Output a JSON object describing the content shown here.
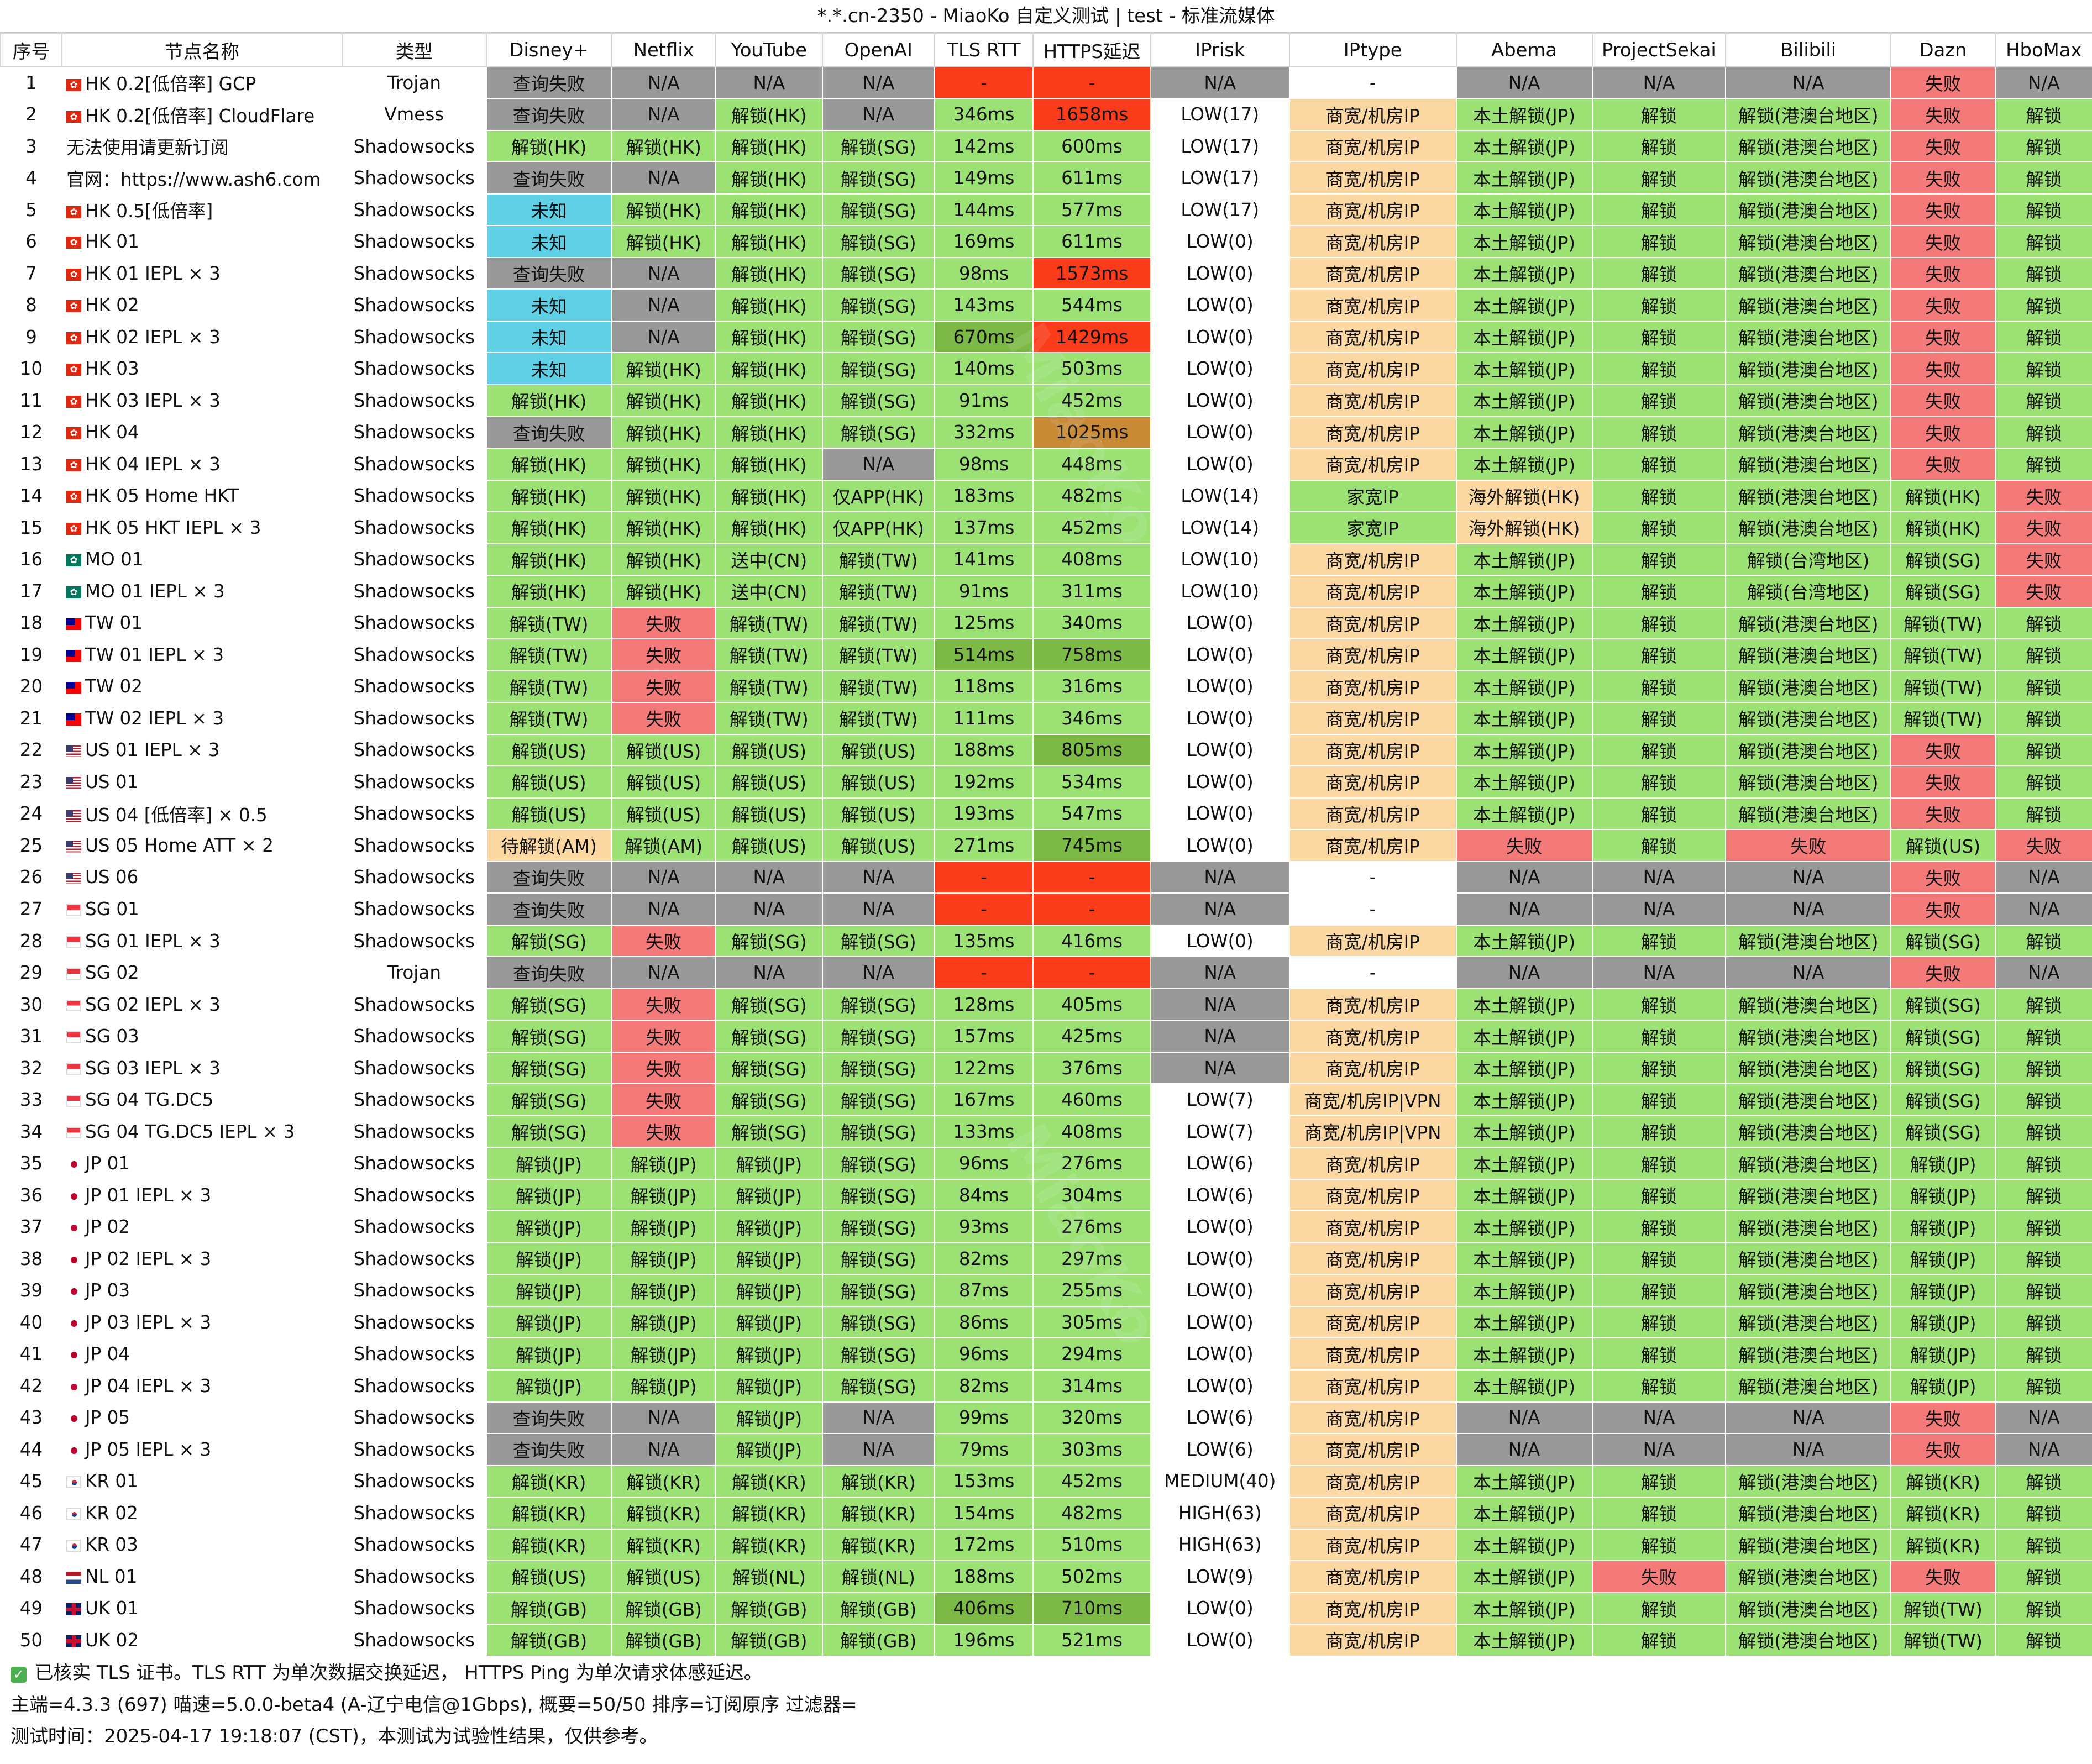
{
  "title": "*.*.cn-2350 - MiaoKo 自定义测试 | test - 标准流媒体",
  "headers": [
    "序号",
    "节点名称",
    "类型",
    "Disney+",
    "Netflix",
    "YouTube",
    "OpenAI",
    "TLS RTT",
    "HTTPS延迟",
    "IPrisk",
    "IPtype",
    "Abema",
    "ProjectSekai",
    "Bilibili",
    "Dazn",
    "HboMax"
  ],
  "rows": [
    [
      "1",
      "HK 0.2[低倍率] GCP",
      "Trojan",
      "查询失败",
      "N/A",
      "N/A",
      "N/A",
      "-",
      "-",
      "N/A",
      "-",
      "N/A",
      "N/A",
      "N/A",
      "失败",
      "N/A"
    ],
    [
      "2",
      "HK 0.2[低倍率] CloudFlare",
      "Vmess",
      "查询失败",
      "N/A",
      "解锁(HK)",
      "N/A",
      "346ms",
      "1658ms",
      "LOW(17)",
      "商宽/机房IP",
      "本土解锁(JP)",
      "解锁",
      "解锁(港澳台地区)",
      "失败",
      "解锁"
    ],
    [
      "3",
      "无法使用请更新订阅",
      "Shadowsocks",
      "解锁(HK)",
      "解锁(HK)",
      "解锁(HK)",
      "解锁(SG)",
      "142ms",
      "600ms",
      "LOW(17)",
      "商宽/机房IP",
      "本土解锁(JP)",
      "解锁",
      "解锁(港澳台地区)",
      "失败",
      "解锁"
    ],
    [
      "4",
      "官网：https://www.ash6.com",
      "Shadowsocks",
      "查询失败",
      "N/A",
      "解锁(HK)",
      "解锁(SG)",
      "149ms",
      "611ms",
      "LOW(17)",
      "商宽/机房IP",
      "本土解锁(JP)",
      "解锁",
      "解锁(港澳台地区)",
      "失败",
      "解锁"
    ],
    [
      "5",
      "HK 0.5[低倍率]",
      "Shadowsocks",
      "未知",
      "解锁(HK)",
      "解锁(HK)",
      "解锁(SG)",
      "144ms",
      "577ms",
      "LOW(17)",
      "商宽/机房IP",
      "本土解锁(JP)",
      "解锁",
      "解锁(港澳台地区)",
      "失败",
      "解锁"
    ],
    [
      "6",
      "HK 01",
      "Shadowsocks",
      "未知",
      "解锁(HK)",
      "解锁(HK)",
      "解锁(SG)",
      "169ms",
      "611ms",
      "LOW(0)",
      "商宽/机房IP",
      "本土解锁(JP)",
      "解锁",
      "解锁(港澳台地区)",
      "失败",
      "解锁"
    ],
    [
      "7",
      "HK 01 IEPL × 3",
      "Shadowsocks",
      "查询失败",
      "N/A",
      "解锁(HK)",
      "解锁(SG)",
      "98ms",
      "1573ms",
      "LOW(0)",
      "商宽/机房IP",
      "本土解锁(JP)",
      "解锁",
      "解锁(港澳台地区)",
      "失败",
      "解锁"
    ],
    [
      "8",
      "HK 02",
      "Shadowsocks",
      "未知",
      "N/A",
      "解锁(HK)",
      "解锁(SG)",
      "143ms",
      "544ms",
      "LOW(0)",
      "商宽/机房IP",
      "本土解锁(JP)",
      "解锁",
      "解锁(港澳台地区)",
      "失败",
      "解锁"
    ],
    [
      "9",
      "HK 02 IEPL × 3",
      "Shadowsocks",
      "未知",
      "N/A",
      "解锁(HK)",
      "解锁(SG)",
      "670ms",
      "1429ms",
      "LOW(0)",
      "商宽/机房IP",
      "本土解锁(JP)",
      "解锁",
      "解锁(港澳台地区)",
      "失败",
      "解锁"
    ],
    [
      "10",
      "HK 03",
      "Shadowsocks",
      "未知",
      "解锁(HK)",
      "解锁(HK)",
      "解锁(SG)",
      "140ms",
      "503ms",
      "LOW(0)",
      "商宽/机房IP",
      "本土解锁(JP)",
      "解锁",
      "解锁(港澳台地区)",
      "失败",
      "解锁"
    ],
    [
      "11",
      "HK 03 IEPL × 3",
      "Shadowsocks",
      "解锁(HK)",
      "解锁(HK)",
      "解锁(HK)",
      "解锁(SG)",
      "91ms",
      "452ms",
      "LOW(0)",
      "商宽/机房IP",
      "本土解锁(JP)",
      "解锁",
      "解锁(港澳台地区)",
      "失败",
      "解锁"
    ],
    [
      "12",
      "HK 04",
      "Shadowsocks",
      "查询失败",
      "解锁(HK)",
      "解锁(HK)",
      "解锁(SG)",
      "332ms",
      "1025ms",
      "LOW(0)",
      "商宽/机房IP",
      "本土解锁(JP)",
      "解锁",
      "解锁(港澳台地区)",
      "失败",
      "解锁"
    ],
    [
      "13",
      "HK 04 IEPL × 3",
      "Shadowsocks",
      "解锁(HK)",
      "解锁(HK)",
      "解锁(HK)",
      "N/A",
      "98ms",
      "448ms",
      "LOW(0)",
      "商宽/机房IP",
      "本土解锁(JP)",
      "解锁",
      "解锁(港澳台地区)",
      "失败",
      "解锁"
    ],
    [
      "14",
      "HK 05 Home HKT",
      "Shadowsocks",
      "解锁(HK)",
      "解锁(HK)",
      "解锁(HK)",
      "仅APP(HK)",
      "183ms",
      "482ms",
      "LOW(14)",
      "家宽IP",
      "海外解锁(HK)",
      "解锁",
      "解锁(港澳台地区)",
      "解锁(HK)",
      "失败"
    ],
    [
      "15",
      "HK 05 HKT IEPL × 3",
      "Shadowsocks",
      "解锁(HK)",
      "解锁(HK)",
      "解锁(HK)",
      "仅APP(HK)",
      "137ms",
      "452ms",
      "LOW(14)",
      "家宽IP",
      "海外解锁(HK)",
      "解锁",
      "解锁(港澳台地区)",
      "解锁(HK)",
      "失败"
    ],
    [
      "16",
      "MO 01",
      "Shadowsocks",
      "解锁(HK)",
      "解锁(HK)",
      "送中(CN)",
      "解锁(TW)",
      "141ms",
      "408ms",
      "LOW(10)",
      "商宽/机房IP",
      "本土解锁(JP)",
      "解锁",
      "解锁(台湾地区)",
      "解锁(SG)",
      "失败"
    ],
    [
      "17",
      "MO 01 IEPL × 3",
      "Shadowsocks",
      "解锁(HK)",
      "解锁(HK)",
      "送中(CN)",
      "解锁(TW)",
      "91ms",
      "311ms",
      "LOW(10)",
      "商宽/机房IP",
      "本土解锁(JP)",
      "解锁",
      "解锁(台湾地区)",
      "解锁(SG)",
      "失败"
    ],
    [
      "18",
      "TW 01",
      "Shadowsocks",
      "解锁(TW)",
      "失败",
      "解锁(TW)",
      "解锁(TW)",
      "125ms",
      "340ms",
      "LOW(0)",
      "商宽/机房IP",
      "本土解锁(JP)",
      "解锁",
      "解锁(港澳台地区)",
      "解锁(TW)",
      "解锁"
    ],
    [
      "19",
      "TW 01 IEPL × 3",
      "Shadowsocks",
      "解锁(TW)",
      "失败",
      "解锁(TW)",
      "解锁(TW)",
      "514ms",
      "758ms",
      "LOW(0)",
      "商宽/机房IP",
      "本土解锁(JP)",
      "解锁",
      "解锁(港澳台地区)",
      "解锁(TW)",
      "解锁"
    ],
    [
      "20",
      "TW 02",
      "Shadowsocks",
      "解锁(TW)",
      "失败",
      "解锁(TW)",
      "解锁(TW)",
      "118ms",
      "316ms",
      "LOW(0)",
      "商宽/机房IP",
      "本土解锁(JP)",
      "解锁",
      "解锁(港澳台地区)",
      "解锁(TW)",
      "解锁"
    ],
    [
      "21",
      "TW 02 IEPL × 3",
      "Shadowsocks",
      "解锁(TW)",
      "失败",
      "解锁(TW)",
      "解锁(TW)",
      "111ms",
      "346ms",
      "LOW(0)",
      "商宽/机房IP",
      "本土解锁(JP)",
      "解锁",
      "解锁(港澳台地区)",
      "解锁(TW)",
      "解锁"
    ],
    [
      "22",
      "US 01 IEPL × 3",
      "Shadowsocks",
      "解锁(US)",
      "解锁(US)",
      "解锁(US)",
      "解锁(US)",
      "188ms",
      "805ms",
      "LOW(0)",
      "商宽/机房IP",
      "本土解锁(JP)",
      "解锁",
      "解锁(港澳台地区)",
      "失败",
      "解锁"
    ],
    [
      "23",
      "US 01",
      "Shadowsocks",
      "解锁(US)",
      "解锁(US)",
      "解锁(US)",
      "解锁(US)",
      "192ms",
      "534ms",
      "LOW(0)",
      "商宽/机房IP",
      "本土解锁(JP)",
      "解锁",
      "解锁(港澳台地区)",
      "失败",
      "解锁"
    ],
    [
      "24",
      "US 04 [低倍率] × 0.5",
      "Shadowsocks",
      "解锁(US)",
      "解锁(US)",
      "解锁(US)",
      "解锁(US)",
      "193ms",
      "547ms",
      "LOW(0)",
      "商宽/机房IP",
      "本土解锁(JP)",
      "解锁",
      "解锁(港澳台地区)",
      "失败",
      "解锁"
    ],
    [
      "25",
      "US 05 Home ATT × 2",
      "Shadowsocks",
      "待解锁(AM)",
      "解锁(AM)",
      "解锁(US)",
      "解锁(US)",
      "271ms",
      "745ms",
      "LOW(0)",
      "商宽/机房IP",
      "失败",
      "解锁",
      "失败",
      "解锁(US)",
      "失败"
    ],
    [
      "26",
      "US 06",
      "Shadowsocks",
      "查询失败",
      "N/A",
      "N/A",
      "N/A",
      "-",
      "-",
      "N/A",
      "-",
      "N/A",
      "N/A",
      "N/A",
      "失败",
      "N/A"
    ],
    [
      "27",
      "SG 01",
      "Shadowsocks",
      "查询失败",
      "N/A",
      "N/A",
      "N/A",
      "-",
      "-",
      "N/A",
      "-",
      "N/A",
      "N/A",
      "N/A",
      "失败",
      "N/A"
    ],
    [
      "28",
      "SG 01 IEPL × 3",
      "Shadowsocks",
      "解锁(SG)",
      "失败",
      "解锁(SG)",
      "解锁(SG)",
      "135ms",
      "416ms",
      "LOW(0)",
      "商宽/机房IP",
      "本土解锁(JP)",
      "解锁",
      "解锁(港澳台地区)",
      "解锁(SG)",
      "解锁"
    ],
    [
      "29",
      "SG 02",
      "Trojan",
      "查询失败",
      "N/A",
      "N/A",
      "N/A",
      "-",
      "-",
      "N/A",
      "-",
      "N/A",
      "N/A",
      "N/A",
      "失败",
      "N/A"
    ],
    [
      "30",
      "SG 02 IEPL × 3",
      "Shadowsocks",
      "解锁(SG)",
      "失败",
      "解锁(SG)",
      "解锁(SG)",
      "128ms",
      "405ms",
      "N/A",
      "商宽/机房IP",
      "本土解锁(JP)",
      "解锁",
      "解锁(港澳台地区)",
      "解锁(SG)",
      "解锁"
    ],
    [
      "31",
      "SG 03",
      "Shadowsocks",
      "解锁(SG)",
      "失败",
      "解锁(SG)",
      "解锁(SG)",
      "157ms",
      "425ms",
      "N/A",
      "商宽/机房IP",
      "本土解锁(JP)",
      "解锁",
      "解锁(港澳台地区)",
      "解锁(SG)",
      "解锁"
    ],
    [
      "32",
      "SG 03 IEPL × 3",
      "Shadowsocks",
      "解锁(SG)",
      "失败",
      "解锁(SG)",
      "解锁(SG)",
      "122ms",
      "376ms",
      "N/A",
      "商宽/机房IP",
      "本土解锁(JP)",
      "解锁",
      "解锁(港澳台地区)",
      "解锁(SG)",
      "解锁"
    ],
    [
      "33",
      "SG 04 TG.DC5",
      "Shadowsocks",
      "解锁(SG)",
      "失败",
      "解锁(SG)",
      "解锁(SG)",
      "167ms",
      "460ms",
      "LOW(7)",
      "商宽/机房IP|VPN",
      "本土解锁(JP)",
      "解锁",
      "解锁(港澳台地区)",
      "解锁(SG)",
      "解锁"
    ],
    [
      "34",
      "SG 04 TG.DC5 IEPL × 3",
      "Shadowsocks",
      "解锁(SG)",
      "失败",
      "解锁(SG)",
      "解锁(SG)",
      "133ms",
      "408ms",
      "LOW(7)",
      "商宽/机房IP|VPN",
      "本土解锁(JP)",
      "解锁",
      "解锁(港澳台地区)",
      "解锁(SG)",
      "解锁"
    ],
    [
      "35",
      "JP 01",
      "Shadowsocks",
      "解锁(JP)",
      "解锁(JP)",
      "解锁(JP)",
      "解锁(SG)",
      "96ms",
      "276ms",
      "LOW(6)",
      "商宽/机房IP",
      "本土解锁(JP)",
      "解锁",
      "解锁(港澳台地区)",
      "解锁(JP)",
      "解锁"
    ],
    [
      "36",
      "JP 01 IEPL × 3",
      "Shadowsocks",
      "解锁(JP)",
      "解锁(JP)",
      "解锁(JP)",
      "解锁(SG)",
      "84ms",
      "304ms",
      "LOW(6)",
      "商宽/机房IP",
      "本土解锁(JP)",
      "解锁",
      "解锁(港澳台地区)",
      "解锁(JP)",
      "解锁"
    ],
    [
      "37",
      "JP 02",
      "Shadowsocks",
      "解锁(JP)",
      "解锁(JP)",
      "解锁(JP)",
      "解锁(SG)",
      "93ms",
      "276ms",
      "LOW(0)",
      "商宽/机房IP",
      "本土解锁(JP)",
      "解锁",
      "解锁(港澳台地区)",
      "解锁(JP)",
      "解锁"
    ],
    [
      "38",
      "JP 02 IEPL × 3",
      "Shadowsocks",
      "解锁(JP)",
      "解锁(JP)",
      "解锁(JP)",
      "解锁(SG)",
      "82ms",
      "297ms",
      "LOW(0)",
      "商宽/机房IP",
      "本土解锁(JP)",
      "解锁",
      "解锁(港澳台地区)",
      "解锁(JP)",
      "解锁"
    ],
    [
      "39",
      "JP 03",
      "Shadowsocks",
      "解锁(JP)",
      "解锁(JP)",
      "解锁(JP)",
      "解锁(SG)",
      "87ms",
      "255ms",
      "LOW(0)",
      "商宽/机房IP",
      "本土解锁(JP)",
      "解锁",
      "解锁(港澳台地区)",
      "解锁(JP)",
      "解锁"
    ],
    [
      "40",
      "JP 03 IEPL × 3",
      "Shadowsocks",
      "解锁(JP)",
      "解锁(JP)",
      "解锁(JP)",
      "解锁(SG)",
      "86ms",
      "305ms",
      "LOW(0)",
      "商宽/机房IP",
      "本土解锁(JP)",
      "解锁",
      "解锁(港澳台地区)",
      "解锁(JP)",
      "解锁"
    ],
    [
      "41",
      "JP 04",
      "Shadowsocks",
      "解锁(JP)",
      "解锁(JP)",
      "解锁(JP)",
      "解锁(SG)",
      "96ms",
      "294ms",
      "LOW(0)",
      "商宽/机房IP",
      "本土解锁(JP)",
      "解锁",
      "解锁(港澳台地区)",
      "解锁(JP)",
      "解锁"
    ],
    [
      "42",
      "JP 04 IEPL × 3",
      "Shadowsocks",
      "解锁(JP)",
      "解锁(JP)",
      "解锁(JP)",
      "解锁(SG)",
      "82ms",
      "314ms",
      "LOW(0)",
      "商宽/机房IP",
      "本土解锁(JP)",
      "解锁",
      "解锁(港澳台地区)",
      "解锁(JP)",
      "解锁"
    ],
    [
      "43",
      "JP 05",
      "Shadowsocks",
      "查询失败",
      "N/A",
      "解锁(JP)",
      "N/A",
      "99ms",
      "320ms",
      "LOW(6)",
      "商宽/机房IP",
      "N/A",
      "N/A",
      "N/A",
      "失败",
      "N/A"
    ],
    [
      "44",
      "JP 05 IEPL × 3",
      "Shadowsocks",
      "查询失败",
      "N/A",
      "解锁(JP)",
      "N/A",
      "79ms",
      "303ms",
      "LOW(6)",
      "商宽/机房IP",
      "N/A",
      "N/A",
      "N/A",
      "失败",
      "N/A"
    ],
    [
      "45",
      "KR 01",
      "Shadowsocks",
      "解锁(KR)",
      "解锁(KR)",
      "解锁(KR)",
      "解锁(KR)",
      "153ms",
      "452ms",
      "MEDIUM(40)",
      "商宽/机房IP",
      "本土解锁(JP)",
      "解锁",
      "解锁(港澳台地区)",
      "解锁(KR)",
      "解锁"
    ],
    [
      "46",
      "KR 02",
      "Shadowsocks",
      "解锁(KR)",
      "解锁(KR)",
      "解锁(KR)",
      "解锁(KR)",
      "154ms",
      "482ms",
      "HIGH(63)",
      "商宽/机房IP",
      "本土解锁(JP)",
      "解锁",
      "解锁(港澳台地区)",
      "解锁(KR)",
      "解锁"
    ],
    [
      "47",
      "KR 03",
      "Shadowsocks",
      "解锁(KR)",
      "解锁(KR)",
      "解锁(KR)",
      "解锁(KR)",
      "172ms",
      "510ms",
      "HIGH(63)",
      "商宽/机房IP",
      "本土解锁(JP)",
      "解锁",
      "解锁(港澳台地区)",
      "解锁(KR)",
      "解锁"
    ],
    [
      "48",
      "NL 01",
      "Shadowsocks",
      "解锁(US)",
      "解锁(US)",
      "解锁(NL)",
      "解锁(NL)",
      "188ms",
      "502ms",
      "LOW(9)",
      "商宽/机房IP",
      "本土解锁(JP)",
      "失败",
      "解锁(港澳台地区)",
      "失败",
      "解锁"
    ],
    [
      "49",
      "UK 01",
      "Shadowsocks",
      "解锁(GB)",
      "解锁(GB)",
      "解锁(GB)",
      "解锁(GB)",
      "406ms",
      "710ms",
      "LOW(0)",
      "商宽/机房IP",
      "本土解锁(JP)",
      "解锁",
      "解锁(港澳台地区)",
      "解锁(TW)",
      "解锁"
    ],
    [
      "50",
      "UK 02",
      "Shadowsocks",
      "解锁(GB)",
      "解锁(GB)",
      "解锁(GB)",
      "解锁(GB)",
      "196ms",
      "521ms",
      "LOW(0)",
      "商宽/机房IP",
      "本土解锁(JP)",
      "解锁",
      "解锁(港澳台地区)",
      "解锁(TW)",
      "解锁"
    ]
  ],
  "footer": {
    "line1": "已核实 TLS 证书。TLS RTT 为单次数据交换延迟， HTTPS Ping 为单次请求体感延迟。",
    "line2": "主端=4.3.3 (697) 喵速=5.0.0-beta4 (A-辽宁电信@1Gbps), 概要=50/50 排序=订阅原序 过滤器=",
    "line3": "测试时间：2025-04-17 19:18:07 (CST)，本测试为试验性结果，仅供参考。"
  },
  "watermark": "MiaoKo"
}
